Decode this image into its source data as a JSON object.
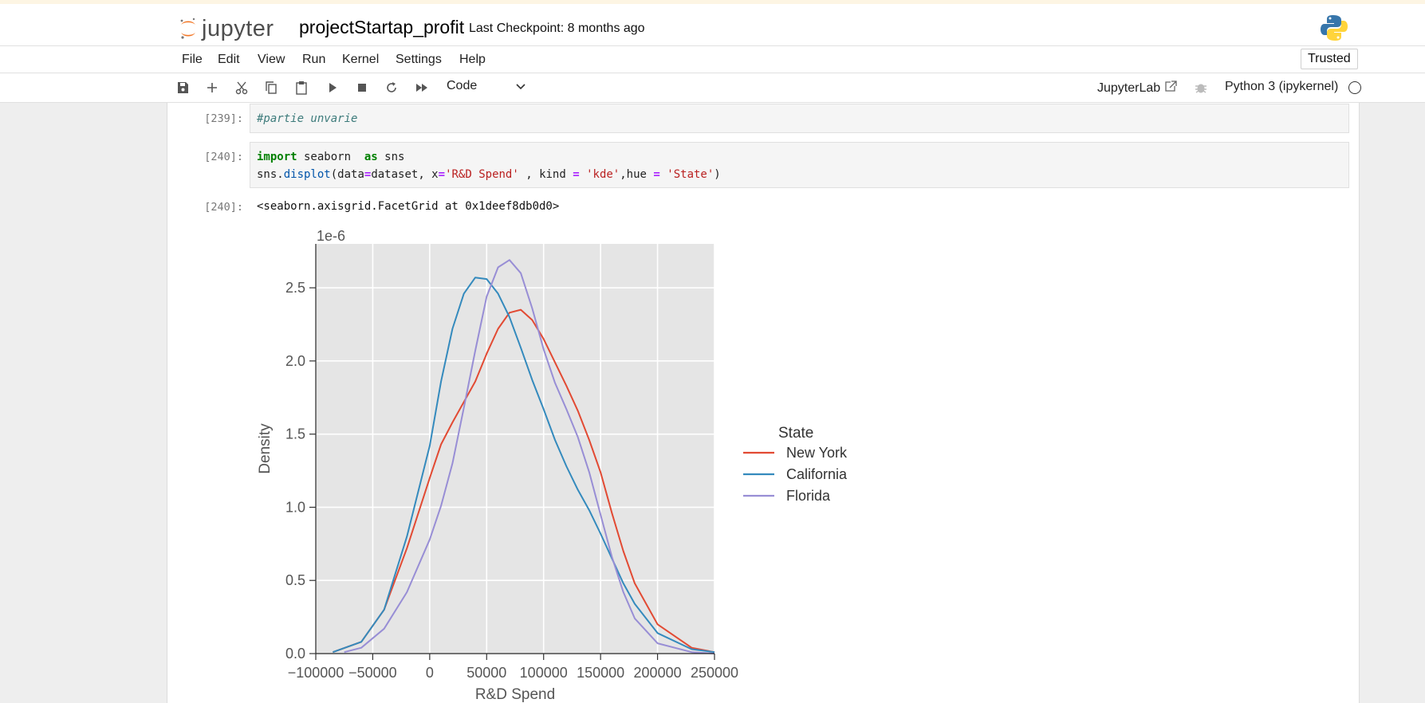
{
  "header": {
    "logo_text": "jupyter",
    "notebook_title": "projectStartap_profit",
    "checkpoint": "Last Checkpoint: 8 months ago",
    "kernel_logo": "python-logo-icon"
  },
  "menu": {
    "items": [
      "File",
      "Edit",
      "View",
      "Run",
      "Kernel",
      "Settings",
      "Help"
    ],
    "trusted": "Trusted"
  },
  "toolbar": {
    "icons": [
      "save-icon",
      "add-icon",
      "cut-icon",
      "copy-icon",
      "paste-icon",
      "run-icon",
      "stop-icon",
      "restart-icon",
      "run-all-icon"
    ],
    "cell_type": "Code",
    "jupyterlab_label": "JupyterLab",
    "kernel_name": "Python 3 (ipykernel)"
  },
  "cells": {
    "cell1": {
      "prompt": "[239]:",
      "code": "#partie unvarie"
    },
    "cell2": {
      "prompt": "[240]:"
    },
    "out2": {
      "prompt": "[240]:",
      "text": "<seaborn.axisgrid.FacetGrid at 0x1deef8db0d0>"
    }
  },
  "chart_data": {
    "type": "line",
    "xlabel": "R&D Spend",
    "ylabel": "Density",
    "offset_label": "1e-6",
    "xlim": [
      -100000,
      250000
    ],
    "ylim": [
      0.0,
      2.8
    ],
    "xticks": [
      "−100000",
      "−50000",
      "0",
      "50000",
      "100000",
      "150000",
      "200000",
      "250000"
    ],
    "yticks": [
      "0.0",
      "0.5",
      "1.0",
      "1.5",
      "2.0",
      "2.5"
    ],
    "grid": true,
    "legend_title": "State",
    "legend_placement": "right",
    "series": [
      {
        "name": "New York",
        "color": "#e24a33",
        "x": [
          -85000,
          -60000,
          -40000,
          -20000,
          0,
          10000,
          20000,
          30000,
          40000,
          50000,
          60000,
          70000,
          80000,
          90000,
          100000,
          110000,
          120000,
          130000,
          140000,
          150000,
          160000,
          170000,
          180000,
          200000,
          230000,
          250000
        ],
        "y": [
          0.01,
          0.08,
          0.3,
          0.72,
          1.2,
          1.43,
          1.58,
          1.72,
          1.86,
          2.05,
          2.22,
          2.33,
          2.35,
          2.28,
          2.15,
          1.99,
          1.83,
          1.66,
          1.46,
          1.24,
          0.96,
          0.7,
          0.48,
          0.2,
          0.04,
          0.01
        ]
      },
      {
        "name": "California",
        "color": "#348abd",
        "x": [
          -85000,
          -60000,
          -40000,
          -20000,
          0,
          10000,
          20000,
          30000,
          40000,
          50000,
          60000,
          70000,
          80000,
          90000,
          100000,
          110000,
          120000,
          130000,
          140000,
          150000,
          160000,
          170000,
          180000,
          200000,
          230000,
          250000
        ],
        "y": [
          0.01,
          0.08,
          0.3,
          0.8,
          1.42,
          1.86,
          2.22,
          2.46,
          2.57,
          2.56,
          2.46,
          2.3,
          2.09,
          1.87,
          1.67,
          1.46,
          1.28,
          1.12,
          0.98,
          0.82,
          0.65,
          0.48,
          0.34,
          0.14,
          0.03,
          0.01
        ]
      },
      {
        "name": "Florida",
        "color": "#988ed5",
        "x": [
          -75000,
          -60000,
          -40000,
          -20000,
          0,
          10000,
          20000,
          30000,
          40000,
          50000,
          60000,
          70000,
          80000,
          90000,
          100000,
          110000,
          120000,
          130000,
          140000,
          150000,
          160000,
          170000,
          180000,
          200000,
          230000,
          250000
        ],
        "y": [
          0.01,
          0.04,
          0.17,
          0.42,
          0.78,
          1.01,
          1.3,
          1.68,
          2.07,
          2.44,
          2.64,
          2.69,
          2.6,
          2.36,
          2.08,
          1.85,
          1.67,
          1.48,
          1.24,
          0.95,
          0.66,
          0.42,
          0.24,
          0.07,
          0.01,
          0.0
        ]
      }
    ]
  }
}
